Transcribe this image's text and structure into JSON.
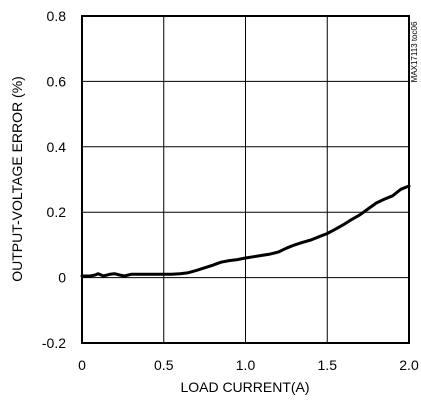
{
  "chart_data": {
    "type": "line",
    "xlabel": "LOAD CURRENT(A)",
    "ylabel": "OUTPUT-VOLTAGE ERROR (%)",
    "annotation": "MAX17113 toc06",
    "xlim": [
      0,
      2.0
    ],
    "ylim": [
      -0.2,
      0.8
    ],
    "x_ticks": [
      "0",
      "0.5",
      "1.0",
      "1.5",
      "2.0"
    ],
    "y_ticks": [
      "-0.2",
      "0",
      "0.2",
      "0.4",
      "0.6",
      "0.8"
    ],
    "grid": true,
    "series": [
      {
        "color": "#000000",
        "x": [
          0,
          0.05,
          0.08,
          0.1,
          0.13,
          0.17,
          0.2,
          0.23,
          0.26,
          0.3,
          0.35,
          0.4,
          0.45,
          0.5,
          0.55,
          0.6,
          0.65,
          0.7,
          0.75,
          0.8,
          0.85,
          0.9,
          0.95,
          1.0,
          1.05,
          1.1,
          1.15,
          1.2,
          1.25,
          1.3,
          1.35,
          1.4,
          1.45,
          1.5,
          1.55,
          1.6,
          1.65,
          1.7,
          1.75,
          1.8,
          1.85,
          1.9,
          1.95,
          2.0
        ],
        "values": [
          0.005,
          0.005,
          0.008,
          0.012,
          0.005,
          0.01,
          0.012,
          0.008,
          0.005,
          0.01,
          0.01,
          0.01,
          0.01,
          0.01,
          0.01,
          0.012,
          0.015,
          0.022,
          0.03,
          0.038,
          0.047,
          0.052,
          0.055,
          0.06,
          0.064,
          0.068,
          0.072,
          0.078,
          0.09,
          0.1,
          0.108,
          0.115,
          0.125,
          0.135,
          0.148,
          0.162,
          0.178,
          0.192,
          0.21,
          0.228,
          0.24,
          0.25,
          0.27,
          0.28
        ]
      }
    ]
  }
}
